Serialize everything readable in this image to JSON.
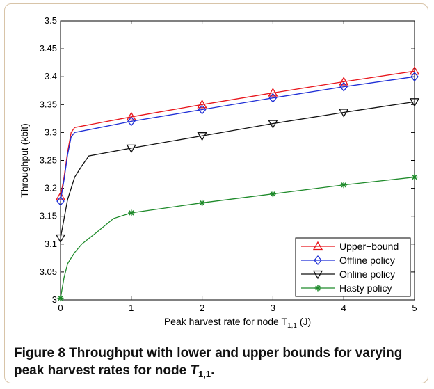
{
  "chart_data": {
    "type": "line",
    "xlabel": "Peak harvest rate for node T",
    "xlabel_sub": "1,1",
    "xlabel_unit": " (J)",
    "ylabel": "Throughput (kbit)",
    "xlim": [
      0,
      5
    ],
    "ylim": [
      3,
      3.5
    ],
    "xticks": [
      0,
      1,
      2,
      3,
      4,
      5
    ],
    "xtick_labels": [
      "0",
      "1",
      "2",
      "3",
      "4",
      "5"
    ],
    "yticks": [
      3,
      3.05,
      3.1,
      3.15,
      3.2,
      3.25,
      3.3,
      3.35,
      3.4,
      3.45,
      3.5
    ],
    "ytick_labels": [
      "3",
      "3.05",
      "3.1",
      "3.15",
      "3.2",
      "3.25",
      "3.3",
      "3.35",
      "3.4",
      "3.45",
      "3.5"
    ],
    "grid": false,
    "legend_position": "bottom-right",
    "series": [
      {
        "name": "Upper−bound",
        "color": "#e8141a",
        "marker": "triangle-up",
        "x": [
          0,
          0.05,
          0.1,
          0.15,
          0.2,
          1,
          2,
          3,
          4,
          5
        ],
        "y": [
          3.185,
          3.22,
          3.265,
          3.3,
          3.309,
          3.328,
          3.35,
          3.371,
          3.391,
          3.41
        ],
        "marker_indices": [
          0,
          5,
          6,
          7,
          8,
          9
        ]
      },
      {
        "name": "Offline policy",
        "color": "#1f2fd6",
        "marker": "diamond",
        "x": [
          0,
          0.05,
          0.1,
          0.15,
          0.2,
          1,
          2,
          3,
          4,
          5
        ],
        "y": [
          3.177,
          3.215,
          3.26,
          3.292,
          3.3,
          3.32,
          3.341,
          3.362,
          3.382,
          3.4
        ],
        "marker_indices": [
          0,
          5,
          6,
          7,
          8,
          9
        ]
      },
      {
        "name": "Online policy",
        "color": "#111111",
        "marker": "triangle-down",
        "x": [
          0,
          0.1,
          0.2,
          0.3,
          0.4,
          1,
          2,
          3,
          4,
          5
        ],
        "y": [
          3.111,
          3.18,
          3.22,
          3.24,
          3.258,
          3.272,
          3.294,
          3.316,
          3.336,
          3.355
        ],
        "marker_indices": [
          0,
          5,
          6,
          7,
          8,
          9
        ]
      },
      {
        "name": "Hasty policy",
        "color": "#1e8a2a",
        "marker": "star",
        "x": [
          0,
          0.05,
          0.1,
          0.2,
          0.3,
          0.5,
          0.75,
          1,
          2,
          3,
          4,
          5
        ],
        "y": [
          3.003,
          3.04,
          3.065,
          3.085,
          3.1,
          3.12,
          3.146,
          3.156,
          3.174,
          3.19,
          3.206,
          3.22
        ],
        "marker_indices": [
          0,
          7,
          8,
          9,
          10,
          11
        ]
      }
    ]
  },
  "caption": {
    "label": "Figure 8",
    "text": " Throughput with lower and upper bounds for varying peak harvest rates for node ",
    "math": "T",
    "math_sub": "1,1",
    "end": "."
  },
  "colors": {
    "frame_border": "#d8c4a8",
    "axes": "#000000"
  }
}
